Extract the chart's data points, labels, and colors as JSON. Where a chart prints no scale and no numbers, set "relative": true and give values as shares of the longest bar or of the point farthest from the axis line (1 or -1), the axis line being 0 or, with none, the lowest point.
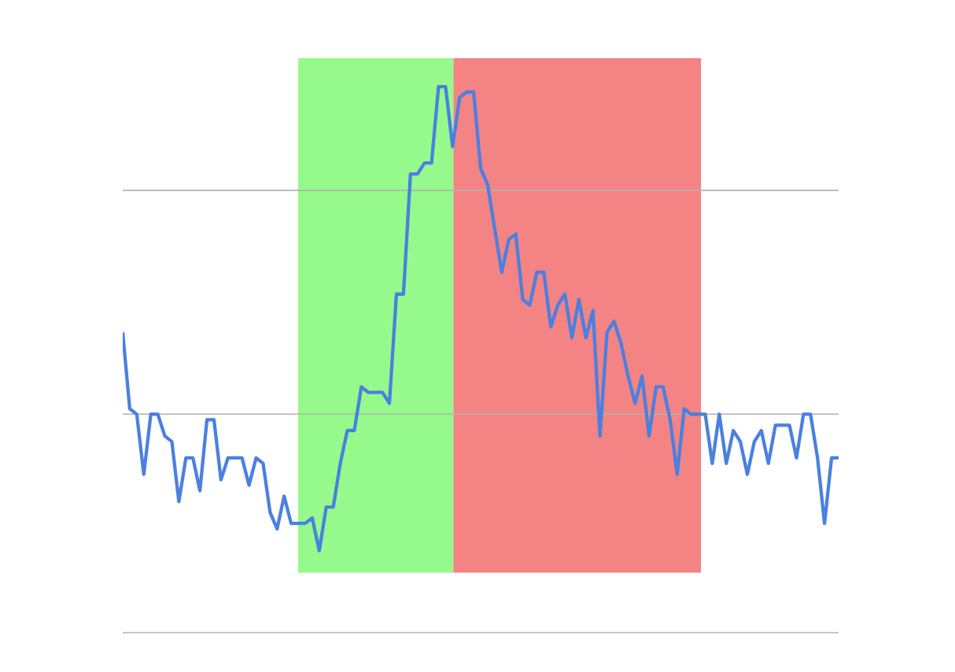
{
  "chart_data": {
    "type": "line",
    "relative": true,
    "color": "#4a80e0",
    "ref_lines": [
      {
        "axis": "y",
        "value": 0.81,
        "color": "#b2b2b2"
      },
      {
        "axis": "y",
        "value": 0.4,
        "color": "#b2b2b2"
      }
    ],
    "categories": [
      null,
      null,
      null,
      null,
      null,
      null,
      null,
      null,
      null,
      null,
      null,
      null,
      null,
      null,
      null,
      null,
      null,
      null,
      null,
      null,
      null,
      null,
      null,
      null,
      null,
      null,
      null,
      null,
      null,
      null,
      null,
      null,
      null,
      null,
      null,
      null,
      null,
      null,
      null,
      null,
      null,
      null,
      null,
      null,
      null,
      null,
      null,
      null,
      null,
      null,
      null,
      null,
      null,
      null,
      null,
      null,
      null,
      null,
      null,
      null,
      null,
      null,
      null,
      null,
      null,
      null,
      null,
      null,
      null,
      null,
      null,
      null,
      null,
      null,
      null,
      null,
      null,
      null,
      null,
      null,
      null,
      null,
      null,
      null,
      null,
      null,
      null,
      null,
      null,
      null,
      null,
      null,
      null,
      null,
      null,
      null,
      null,
      null,
      null,
      null,
      null,
      null,
      null
    ],
    "values": [
      0.55,
      0.41,
      0.4,
      0.29,
      0.4,
      0.4,
      0.36,
      0.35,
      0.24,
      0.32,
      0.32,
      0.26,
      0.39,
      0.39,
      0.28,
      0.32,
      0.32,
      0.32,
      0.27,
      0.32,
      0.31,
      0.22,
      0.19,
      0.25,
      0.2,
      0.2,
      0.2,
      0.21,
      0.15,
      0.23,
      0.23,
      0.31,
      0.37,
      0.37,
      0.45,
      0.44,
      0.44,
      0.44,
      0.42,
      0.62,
      0.62,
      0.84,
      0.84,
      0.86,
      0.86,
      1,
      1,
      0.89,
      0.98,
      0.99,
      0.99,
      0.85,
      0.82,
      0.74,
      0.66,
      0.72,
      0.73,
      0.61,
      0.6,
      0.66,
      0.66,
      0.56,
      0.6,
      0.62,
      0.54,
      0.61,
      0.54,
      0.59,
      0.36,
      0.55,
      0.57,
      0.53,
      0.47,
      0.42,
      0.47,
      0.36,
      0.45,
      0.45,
      0.39,
      0.29,
      0.41,
      0.4,
      0.4,
      0.4,
      0.31,
      0.4,
      0.31,
      0.37,
      0.35,
      0.29,
      0.35,
      0.37,
      0.31,
      0.38,
      0.38,
      0.38,
      0.32,
      0.4,
      0.4,
      0.32,
      0.2,
      0.32,
      0.32
    ]
  }
}
